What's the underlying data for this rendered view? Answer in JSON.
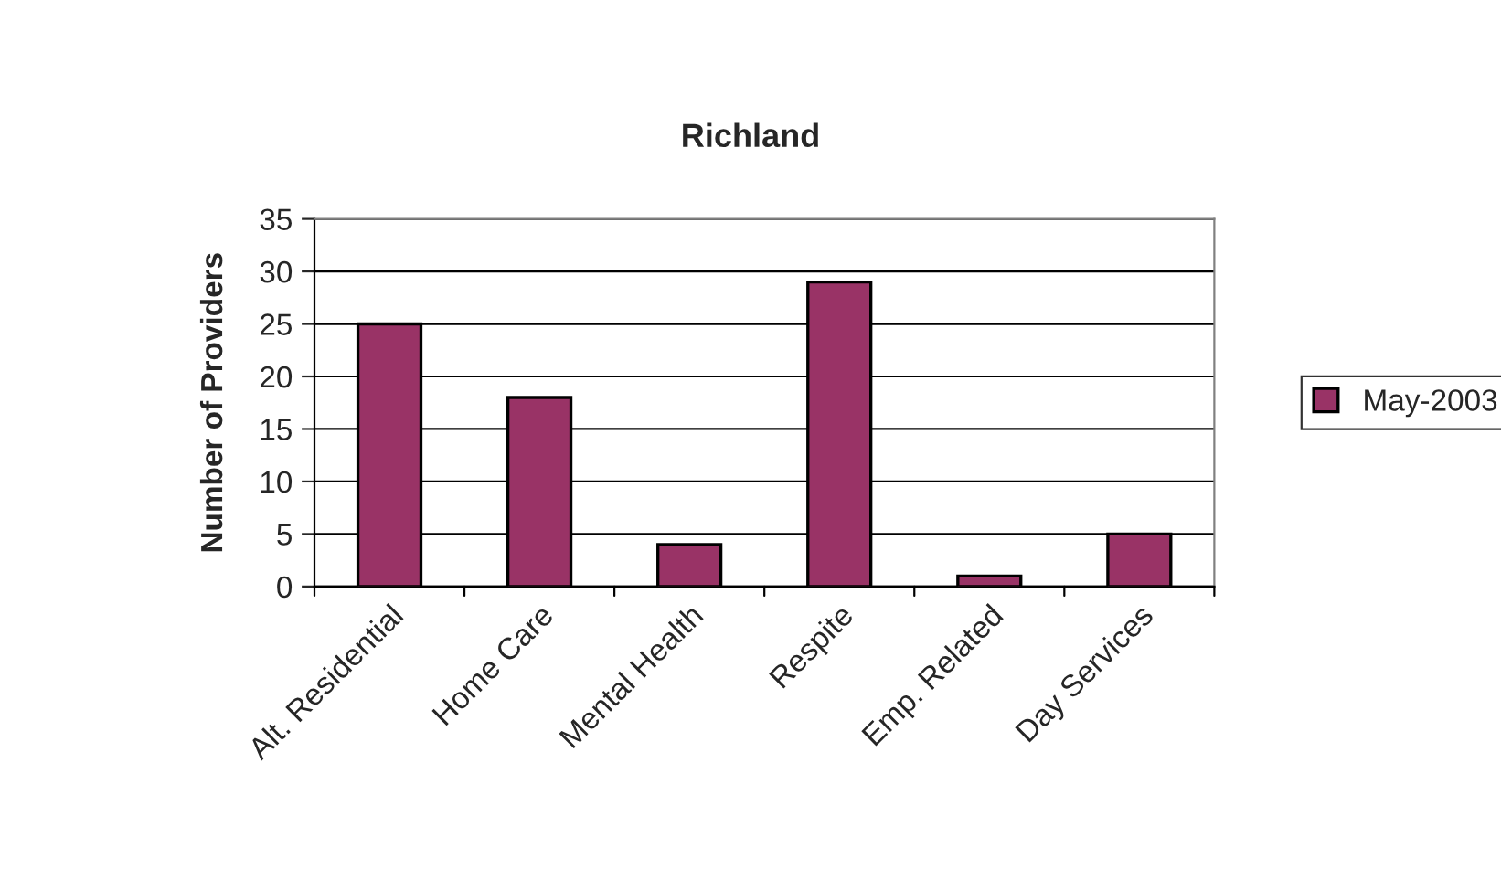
{
  "chart_data": {
    "type": "bar",
    "title": "Richland",
    "ylabel": "Number of Providers",
    "categories": [
      "Alt. Residential",
      "Home Care",
      "Mental Health",
      "Respite",
      "Emp. Related",
      "Day Services"
    ],
    "series": [
      {
        "name": "May-2003",
        "color": "#993366",
        "values": [
          25,
          18,
          4,
          29,
          1,
          5
        ]
      }
    ],
    "ylim": [
      0,
      35
    ],
    "yticks": [
      0,
      5,
      10,
      15,
      20,
      25,
      30,
      35
    ],
    "grid": "y",
    "legend": "right"
  }
}
